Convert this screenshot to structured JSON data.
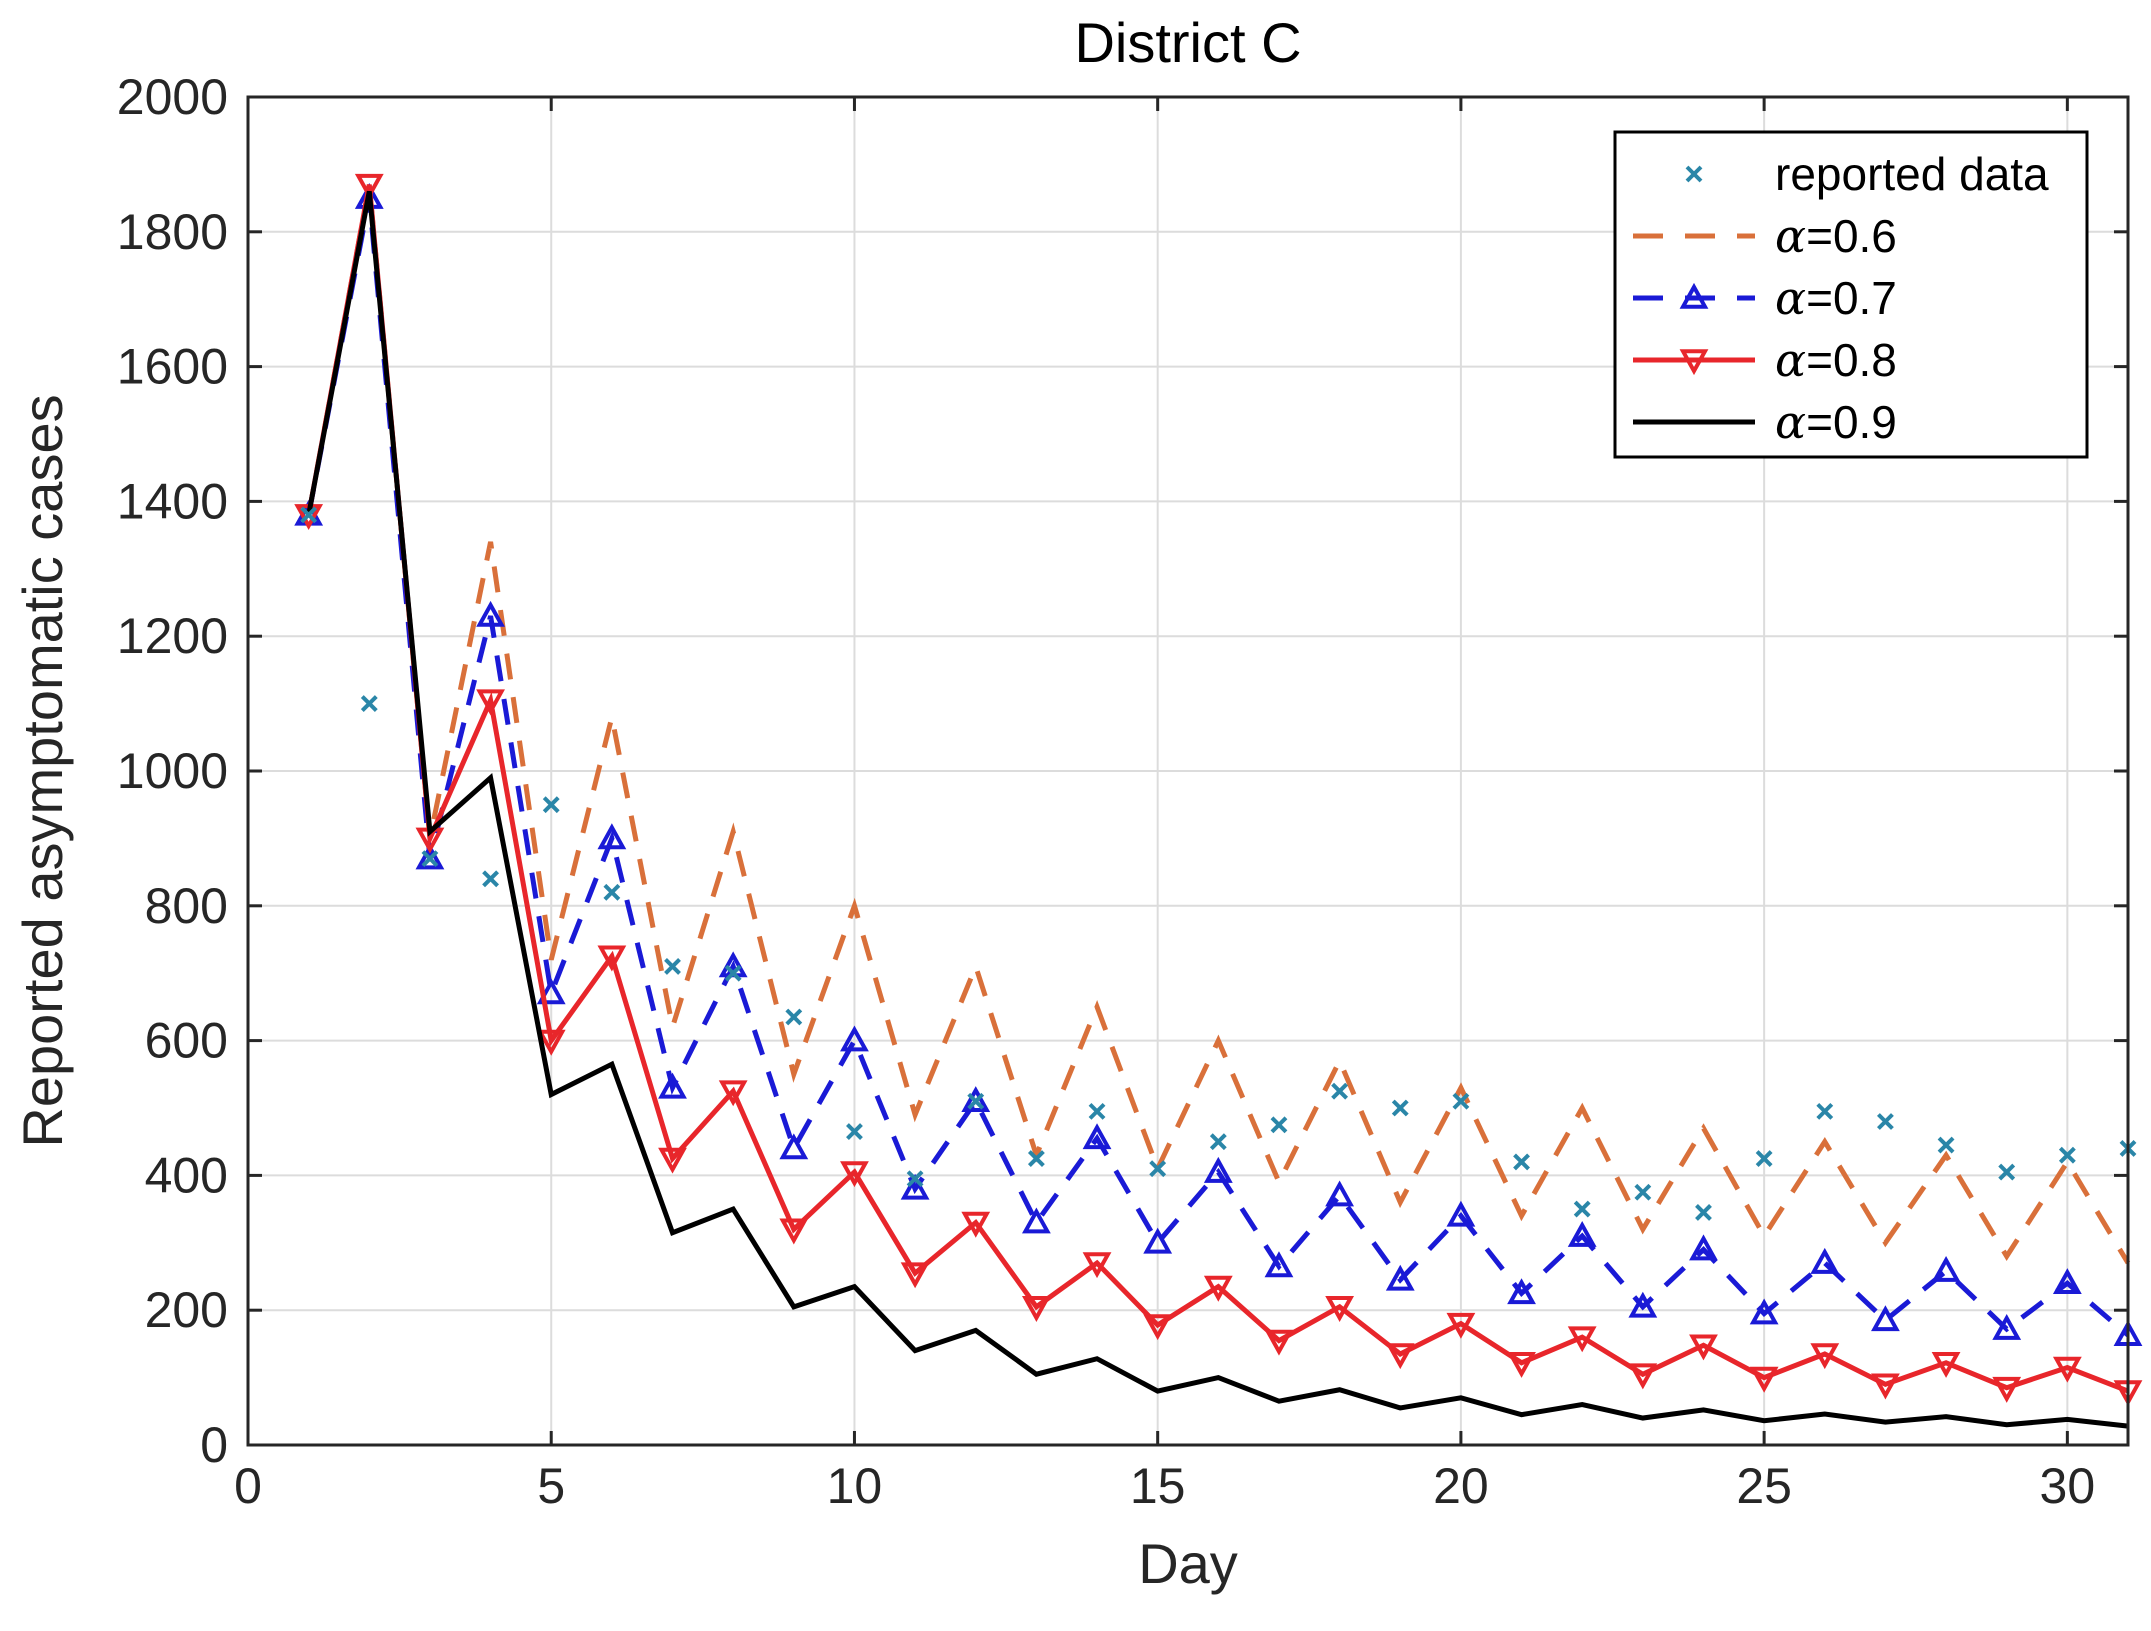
{
  "chart_data": {
    "type": "line",
    "title": "District C",
    "xlabel": "Day",
    "ylabel": "Reported asymptomatic cases",
    "xlim": [
      0,
      31
    ],
    "ylim": [
      0,
      2000
    ],
    "xticks": [
      0,
      5,
      10,
      15,
      20,
      25,
      30
    ],
    "yticks": [
      0,
      200,
      400,
      600,
      800,
      1000,
      1200,
      1400,
      1600,
      1800,
      2000
    ],
    "grid": true,
    "legend_position": "top-right",
    "x": [
      1,
      2,
      3,
      4,
      5,
      6,
      7,
      8,
      9,
      10,
      11,
      12,
      13,
      14,
      15,
      16,
      17,
      18,
      19,
      20,
      21,
      22,
      23,
      24,
      25,
      26,
      27,
      28,
      29,
      30,
      31
    ],
    "series": [
      {
        "name": "reported data",
        "style": "markers-x",
        "color": "#2a86a8",
        "values": [
          1380,
          1100,
          870,
          840,
          950,
          820,
          710,
          700,
          635,
          465,
          395,
          510,
          425,
          495,
          410,
          450,
          475,
          525,
          500,
          510,
          420,
          350,
          375,
          345,
          425,
          495,
          480,
          445,
          405,
          430,
          440
        ]
      },
      {
        "name": "α=0.6",
        "alpha_prefix": "α",
        "alpha_value": "=0.6",
        "style": "dashed",
        "color": "#d9703a",
        "values": [
          1380,
          1870,
          900,
          1340,
          720,
          1080,
          620,
          910,
          550,
          800,
          490,
          710,
          430,
          650,
          410,
          600,
          390,
          570,
          360,
          530,
          340,
          500,
          320,
          470,
          310,
          450,
          300,
          430,
          280,
          420,
          270
        ]
      },
      {
        "name": "α=0.7",
        "alpha_prefix": "α",
        "alpha_value": "=0.7",
        "style": "dash-triangle",
        "color": "#1a1ad6",
        "values": [
          1380,
          1850,
          870,
          1230,
          670,
          900,
          530,
          710,
          440,
          600,
          380,
          510,
          330,
          455,
          300,
          405,
          265,
          370,
          245,
          340,
          225,
          310,
          205,
          290,
          195,
          270,
          185,
          258,
          172,
          240,
          163
        ]
      },
      {
        "name": "α=0.8",
        "alpha_prefix": "α",
        "alpha_value": "=0.8",
        "style": "solid-invtriangle",
        "color": "#e8262b",
        "values": [
          1380,
          1870,
          900,
          1105,
          600,
          725,
          425,
          525,
          320,
          405,
          255,
          330,
          205,
          270,
          178,
          235,
          155,
          205,
          135,
          180,
          122,
          160,
          105,
          148,
          100,
          135,
          90,
          122,
          85,
          115,
          80
        ]
      },
      {
        "name": "α=0.9",
        "alpha_prefix": "α",
        "alpha_value": "=0.9",
        "style": "solid",
        "color": "#000000",
        "values": [
          1380,
          1860,
          910,
          990,
          520,
          565,
          315,
          350,
          205,
          235,
          140,
          170,
          105,
          128,
          80,
          100,
          65,
          82,
          55,
          70,
          45,
          60,
          40,
          52,
          36,
          46,
          34,
          42,
          30,
          38,
          28
        ]
      }
    ]
  }
}
